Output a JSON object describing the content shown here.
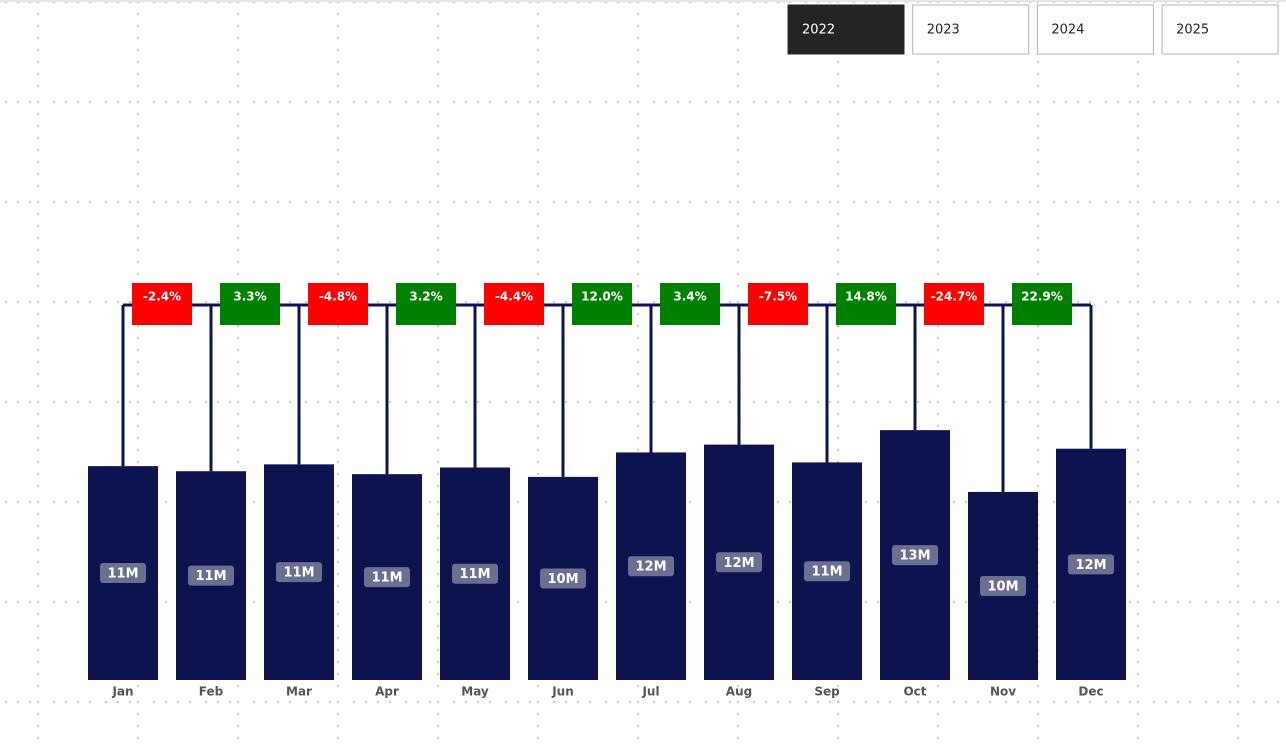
{
  "slicer": {
    "options": [
      "2022",
      "2023",
      "2024",
      "2025"
    ],
    "selected": 0
  },
  "chart_data": {
    "type": "bar",
    "categories": [
      "Jan",
      "Feb",
      "Mar",
      "Apr",
      "May",
      "Jun",
      "Jul",
      "Aug",
      "Sep",
      "Oct",
      "Nov",
      "Dec"
    ],
    "values": [
      10.94,
      10.68,
      11.03,
      10.53,
      10.87,
      10.39,
      11.64,
      12.04,
      11.13,
      12.78,
      9.62,
      11.83
    ],
    "value_labels": [
      "11M",
      "11M",
      "11M",
      "11M",
      "11M",
      "10M",
      "12M",
      "12M",
      "11M",
      "13M",
      "10M",
      "12M"
    ],
    "color": "#0c134f",
    "ylim": [
      0,
      20
    ],
    "changes": {
      "values": [
        -2.4,
        3.3,
        -4.8,
        3.2,
        -4.4,
        12.0,
        3.4,
        -7.5,
        14.8,
        -24.7,
        22.9
      ],
      "value_labels": [
        "-2.4%",
        "3.3%",
        "-4.8%",
        "3.2%",
        "-4.4%",
        "12.0%",
        "3.4%",
        "-7.5%",
        "14.8%",
        "-24.7%",
        "22.9%"
      ],
      "positive_color": "#008000",
      "negative_color": "#ff0000"
    }
  }
}
